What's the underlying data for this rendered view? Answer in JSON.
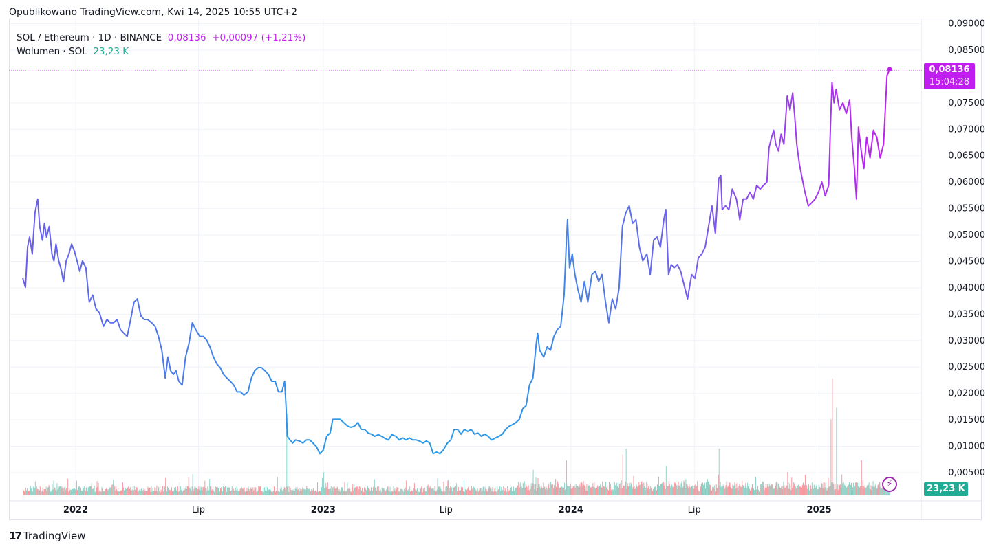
{
  "header": {
    "published": "Opublikowano TradingView.com, Kwi 14, 2025 10:55 UTC+2"
  },
  "legend": {
    "symbol": "SOL / Ethereum · 1D · BINANCE",
    "last": "0,08136",
    "change": "+0,00097 (+1,21%)",
    "volume_label": "Wolumen · SOL",
    "volume_value": "23,23 K"
  },
  "price_tag": {
    "price": "0,08136",
    "countdown": "15:04:28"
  },
  "volume_tag": "23,23 K",
  "footer": {
    "brand": "TradingView",
    "logo_mark": "17"
  },
  "colors": {
    "start": "#6b5cf0",
    "mid": "#2a98e8",
    "end": "#c21ff0",
    "vol_up": "#22ab94",
    "vol_down": "#f23645",
    "tag": "#c01ef0"
  },
  "chart_data": {
    "type": "line",
    "title": "SOL / Ethereum · 1D · BINANCE",
    "x_unit": "days since 2022-01-01",
    "ylabel": "SOL/ETH",
    "ylim": [
      0.0,
      0.09
    ],
    "y_ticks": [
      "0,00500",
      "0,01000",
      "0,01500",
      "0,02000",
      "0,02500",
      "0,03000",
      "0,03500",
      "0,04000",
      "0,04500",
      "0,05000",
      "0,05500",
      "0,06000",
      "0,06500",
      "0,07000",
      "0,07500",
      "0,08500",
      "0,09000"
    ],
    "y_tick_values": [
      0.005,
      0.01,
      0.015,
      0.02,
      0.025,
      0.03,
      0.035,
      0.04,
      0.045,
      0.05,
      0.055,
      0.06,
      0.065,
      0.07,
      0.075,
      0.085,
      0.09
    ],
    "x_ticks": [
      {
        "label": "2022",
        "day": 0
      },
      {
        "label": "Lip",
        "day": 181
      },
      {
        "label": "2023",
        "day": 365
      },
      {
        "label": "Lip",
        "day": 546
      },
      {
        "label": "2024",
        "day": 730
      },
      {
        "label": "Lip",
        "day": 912
      },
      {
        "label": "2025",
        "day": 1096
      }
    ],
    "grid": true,
    "series": [
      {
        "name": "SOL/ETH",
        "points": [
          [
            -78,
            0.0418
          ],
          [
            -74,
            0.0401
          ],
          [
            -71,
            0.0477
          ],
          [
            -68,
            0.0496
          ],
          [
            -64,
            0.0464
          ],
          [
            -60,
            0.0542
          ],
          [
            -56,
            0.0568
          ],
          [
            -53,
            0.0516
          ],
          [
            -49,
            0.049
          ],
          [
            -46,
            0.0522
          ],
          [
            -43,
            0.0496
          ],
          [
            -39,
            0.0516
          ],
          [
            -35,
            0.0464
          ],
          [
            -32,
            0.0451
          ],
          [
            -29,
            0.0483
          ],
          [
            -25,
            0.0451
          ],
          [
            -22,
            0.0438
          ],
          [
            -18,
            0.0412
          ],
          [
            -14,
            0.0451
          ],
          [
            -10,
            0.0464
          ],
          [
            -6,
            0.0483
          ],
          [
            -2,
            0.047
          ],
          [
            2,
            0.0451
          ],
          [
            6,
            0.0431
          ],
          [
            10,
            0.0451
          ],
          [
            15,
            0.0438
          ],
          [
            20,
            0.0373
          ],
          [
            25,
            0.0386
          ],
          [
            30,
            0.036
          ],
          [
            35,
            0.0353
          ],
          [
            41,
            0.0327
          ],
          [
            46,
            0.034
          ],
          [
            51,
            0.0334
          ],
          [
            56,
            0.0334
          ],
          [
            61,
            0.034
          ],
          [
            66,
            0.0321
          ],
          [
            71,
            0.0314
          ],
          [
            76,
            0.0308
          ],
          [
            81,
            0.034
          ],
          [
            86,
            0.0373
          ],
          [
            91,
            0.0379
          ],
          [
            96,
            0.0347
          ],
          [
            101,
            0.034
          ],
          [
            106,
            0.034
          ],
          [
            112,
            0.0334
          ],
          [
            117,
            0.0327
          ],
          [
            122,
            0.0308
          ],
          [
            127,
            0.0282
          ],
          [
            132,
            0.0229
          ],
          [
            136,
            0.0269
          ],
          [
            140,
            0.0243
          ],
          [
            144,
            0.0236
          ],
          [
            148,
            0.0243
          ],
          [
            152,
            0.0223
          ],
          [
            157,
            0.0216
          ],
          [
            162,
            0.0269
          ],
          [
            167,
            0.0295
          ],
          [
            172,
            0.0334
          ],
          [
            177,
            0.0321
          ],
          [
            183,
            0.0308
          ],
          [
            188,
            0.0308
          ],
          [
            193,
            0.0301
          ],
          [
            198,
            0.0288
          ],
          [
            203,
            0.0269
          ],
          [
            208,
            0.0256
          ],
          [
            213,
            0.0249
          ],
          [
            218,
            0.0236
          ],
          [
            223,
            0.0229
          ],
          [
            228,
            0.0223
          ],
          [
            233,
            0.0216
          ],
          [
            238,
            0.0203
          ],
          [
            243,
            0.0203
          ],
          [
            248,
            0.0197
          ],
          [
            254,
            0.0203
          ],
          [
            259,
            0.0229
          ],
          [
            264,
            0.0243
          ],
          [
            269,
            0.0249
          ],
          [
            274,
            0.0249
          ],
          [
            279,
            0.0243
          ],
          [
            284,
            0.0236
          ],
          [
            289,
            0.0223
          ],
          [
            294,
            0.0223
          ],
          [
            299,
            0.0203
          ],
          [
            304,
            0.0203
          ],
          [
            308,
            0.0223
          ],
          [
            310,
            0.0177
          ],
          [
            312,
            0.0119
          ],
          [
            316,
            0.0112
          ],
          [
            320,
            0.0106
          ],
          [
            324,
            0.0112
          ],
          [
            330,
            0.011
          ],
          [
            335,
            0.0106
          ],
          [
            340,
            0.0112
          ],
          [
            345,
            0.0112
          ],
          [
            350,
            0.0106
          ],
          [
            355,
            0.0099
          ],
          [
            360,
            0.0086
          ],
          [
            365,
            0.0093
          ],
          [
            370,
            0.0119
          ],
          [
            375,
            0.0125
          ],
          [
            379,
            0.0151
          ],
          [
            385,
            0.0151
          ],
          [
            390,
            0.0151
          ],
          [
            395,
            0.0145
          ],
          [
            401,
            0.0138
          ],
          [
            406,
            0.0136
          ],
          [
            411,
            0.0138
          ],
          [
            416,
            0.0145
          ],
          [
            421,
            0.0132
          ],
          [
            426,
            0.0132
          ],
          [
            431,
            0.0125
          ],
          [
            436,
            0.0123
          ],
          [
            441,
            0.0119
          ],
          [
            446,
            0.0122
          ],
          [
            451,
            0.0119
          ],
          [
            456,
            0.0115
          ],
          [
            461,
            0.0112
          ],
          [
            466,
            0.0122
          ],
          [
            472,
            0.0119
          ],
          [
            477,
            0.0112
          ],
          [
            482,
            0.0116
          ],
          [
            487,
            0.0112
          ],
          [
            492,
            0.0116
          ],
          [
            497,
            0.0112
          ],
          [
            502,
            0.0112
          ],
          [
            507,
            0.011
          ],
          [
            512,
            0.0106
          ],
          [
            517,
            0.011
          ],
          [
            522,
            0.0106
          ],
          [
            527,
            0.0086
          ],
          [
            532,
            0.0089
          ],
          [
            537,
            0.0086
          ],
          [
            542,
            0.0093
          ],
          [
            548,
            0.0106
          ],
          [
            553,
            0.0112
          ],
          [
            558,
            0.0132
          ],
          [
            563,
            0.0132
          ],
          [
            568,
            0.0123
          ],
          [
            573,
            0.0132
          ],
          [
            578,
            0.0128
          ],
          [
            583,
            0.0132
          ],
          [
            588,
            0.0123
          ],
          [
            593,
            0.0125
          ],
          [
            598,
            0.0119
          ],
          [
            603,
            0.0123
          ],
          [
            608,
            0.0119
          ],
          [
            613,
            0.0112
          ],
          [
            619,
            0.0116
          ],
          [
            624,
            0.0119
          ],
          [
            629,
            0.0123
          ],
          [
            634,
            0.0132
          ],
          [
            639,
            0.0138
          ],
          [
            644,
            0.0141
          ],
          [
            649,
            0.0145
          ],
          [
            654,
            0.0151
          ],
          [
            659,
            0.0171
          ],
          [
            664,
            0.0177
          ],
          [
            669,
            0.0216
          ],
          [
            674,
            0.0229
          ],
          [
            679,
            0.0295
          ],
          [
            681,
            0.0314
          ],
          [
            684,
            0.0282
          ],
          [
            690,
            0.0269
          ],
          [
            695,
            0.0288
          ],
          [
            700,
            0.0282
          ],
          [
            705,
            0.0308
          ],
          [
            710,
            0.0321
          ],
          [
            715,
            0.0327
          ],
          [
            720,
            0.0386
          ],
          [
            723,
            0.0477
          ],
          [
            725,
            0.0529
          ],
          [
            728,
            0.0438
          ],
          [
            732,
            0.0464
          ],
          [
            736,
            0.0425
          ],
          [
            740,
            0.0399
          ],
          [
            745,
            0.0373
          ],
          [
            750,
            0.0412
          ],
          [
            755,
            0.0373
          ],
          [
            761,
            0.0425
          ],
          [
            766,
            0.0431
          ],
          [
            771,
            0.0412
          ],
          [
            776,
            0.0425
          ],
          [
            781,
            0.0373
          ],
          [
            786,
            0.0334
          ],
          [
            791,
            0.0379
          ],
          [
            796,
            0.036
          ],
          [
            801,
            0.0399
          ],
          [
            806,
            0.0516
          ],
          [
            811,
            0.0542
          ],
          [
            816,
            0.0555
          ],
          [
            821,
            0.0522
          ],
          [
            826,
            0.0529
          ],
          [
            831,
            0.0477
          ],
          [
            836,
            0.0451
          ],
          [
            842,
            0.0464
          ],
          [
            847,
            0.0425
          ],
          [
            852,
            0.049
          ],
          [
            857,
            0.0496
          ],
          [
            862,
            0.0477
          ],
          [
            867,
            0.0529
          ],
          [
            870,
            0.0548
          ],
          [
            874,
            0.0425
          ],
          [
            878,
            0.0444
          ],
          [
            882,
            0.0438
          ],
          [
            887,
            0.0444
          ],
          [
            892,
            0.0431
          ],
          [
            897,
            0.0405
          ],
          [
            902,
            0.0379
          ],
          [
            908,
            0.0425
          ],
          [
            913,
            0.0418
          ],
          [
            918,
            0.0457
          ],
          [
            923,
            0.0464
          ],
          [
            928,
            0.0477
          ],
          [
            933,
            0.0516
          ],
          [
            938,
            0.0555
          ],
          [
            943,
            0.0503
          ],
          [
            948,
            0.0607
          ],
          [
            951,
            0.0613
          ],
          [
            953,
            0.0548
          ],
          [
            958,
            0.0555
          ],
          [
            963,
            0.0548
          ],
          [
            968,
            0.0587
          ],
          [
            974,
            0.0568
          ],
          [
            979,
            0.0529
          ],
          [
            984,
            0.0568
          ],
          [
            989,
            0.0568
          ],
          [
            994,
            0.0581
          ],
          [
            999,
            0.0568
          ],
          [
            1004,
            0.0594
          ],
          [
            1009,
            0.0587
          ],
          [
            1014,
            0.0594
          ],
          [
            1019,
            0.06
          ],
          [
            1022,
            0.0665
          ],
          [
            1026,
            0.0685
          ],
          [
            1029,
            0.0698
          ],
          [
            1032,
            0.0672
          ],
          [
            1036,
            0.0659
          ],
          [
            1040,
            0.0691
          ],
          [
            1044,
            0.0672
          ],
          [
            1049,
            0.0763
          ],
          [
            1053,
            0.0737
          ],
          [
            1057,
            0.0769
          ],
          [
            1060,
            0.0724
          ],
          [
            1063,
            0.0672
          ],
          [
            1067,
            0.0633
          ],
          [
            1071,
            0.0607
          ],
          [
            1075,
            0.0581
          ],
          [
            1080,
            0.0555
          ],
          [
            1085,
            0.0561
          ],
          [
            1090,
            0.0568
          ],
          [
            1095,
            0.0581
          ],
          [
            1100,
            0.06
          ],
          [
            1105,
            0.0574
          ],
          [
            1110,
            0.0594
          ],
          [
            1113,
            0.0717
          ],
          [
            1115,
            0.0789
          ],
          [
            1118,
            0.075
          ],
          [
            1121,
            0.0776
          ],
          [
            1126,
            0.0737
          ],
          [
            1131,
            0.075
          ],
          [
            1136,
            0.073
          ],
          [
            1141,
            0.0756
          ],
          [
            1144,
            0.0685
          ],
          [
            1148,
            0.0626
          ],
          [
            1151,
            0.0568
          ],
          [
            1154,
            0.0704
          ],
          [
            1158,
            0.0659
          ],
          [
            1162,
            0.0626
          ],
          [
            1166,
            0.0685
          ],
          [
            1171,
            0.0646
          ],
          [
            1176,
            0.0698
          ],
          [
            1181,
            0.0685
          ],
          [
            1186,
            0.0646
          ],
          [
            1191,
            0.0672
          ],
          [
            1196,
            0.0802
          ],
          [
            1200,
            0.08136
          ]
        ]
      }
    ],
    "volume_spikes_relative": [
      [
        -60,
        0.12
      ],
      [
        132,
        0.15
      ],
      [
        172,
        0.18
      ],
      [
        310,
        0.55
      ],
      [
        312,
        0.7
      ],
      [
        365,
        0.2
      ],
      [
        674,
        0.22
      ],
      [
        723,
        0.3
      ],
      [
        806,
        0.35
      ],
      [
        811,
        0.4
      ],
      [
        870,
        0.25
      ],
      [
        948,
        0.4
      ],
      [
        1049,
        0.2
      ],
      [
        1113,
        0.65
      ],
      [
        1115,
        1.0
      ],
      [
        1121,
        0.75
      ],
      [
        1158,
        0.3
      ]
    ],
    "last_value": 0.08136
  }
}
